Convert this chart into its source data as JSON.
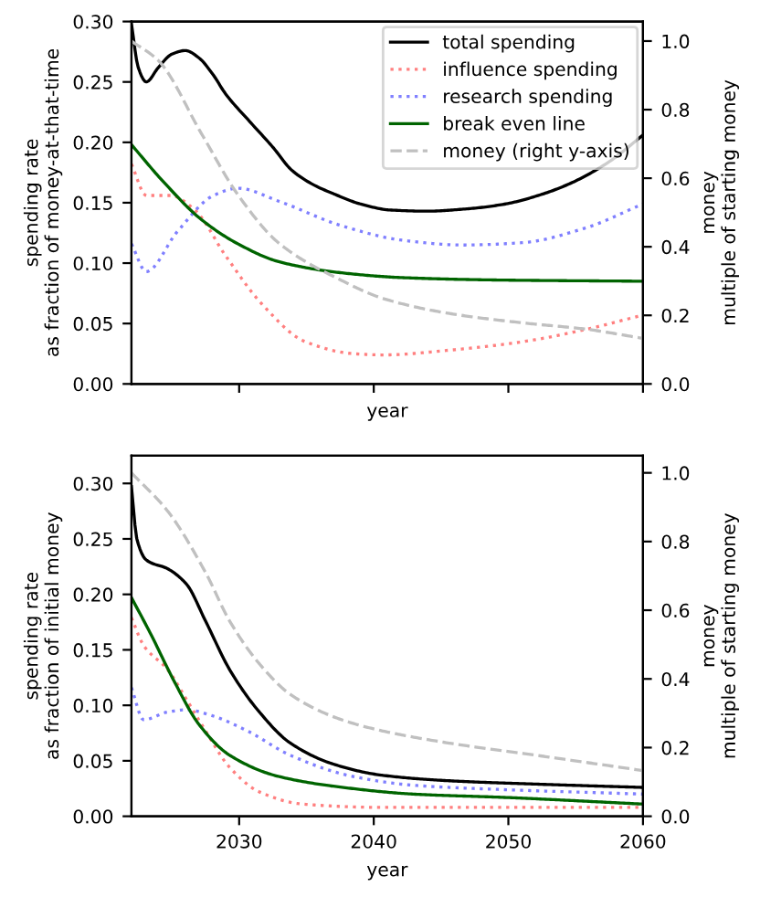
{
  "chart_data": [
    {
      "type": "line",
      "xlabel": "year",
      "ylabel": "spending rate\nas fraction of money-at-that-time",
      "y2label": "money\nmultiple of starting money",
      "xlim": [
        2022,
        2060
      ],
      "xticks": [
        {
          "value": 2030,
          "label": null
        },
        {
          "value": 2040,
          "label": null
        },
        {
          "value": 2050,
          "label": null
        },
        {
          "value": 2060,
          "label": null
        }
      ],
      "ylim": [
        0,
        0.3
      ],
      "yticks": [
        {
          "value": 0,
          "label": "0.00"
        },
        {
          "value": 0.05,
          "label": "0.05"
        },
        {
          "value": 0.1,
          "label": "0.10"
        },
        {
          "value": 0.15,
          "label": "0.15"
        },
        {
          "value": 0.2,
          "label": "0.20"
        },
        {
          "value": 0.25,
          "label": "0.25"
        },
        {
          "value": 0.3,
          "label": "0.30"
        }
      ],
      "y2lim": [
        0,
        1.057
      ],
      "y2ticks": [
        {
          "value": 0,
          "label": "0.0"
        },
        {
          "value": 0.2,
          "label": "0.2"
        },
        {
          "value": 0.4,
          "label": "0.4"
        },
        {
          "value": 0.6,
          "label": "0.6"
        },
        {
          "value": 0.8,
          "label": "0.8"
        },
        {
          "value": 1,
          "label": "1.0"
        }
      ],
      "tick_labels": "y",
      "legend": "top right",
      "grid": false,
      "marker": "none",
      "series": [
        {
          "name": "total spending",
          "color": "#000000",
          "line_style": "solid",
          "x": [
            2022,
            2022.5,
            2023.1,
            2024,
            2025,
            2026,
            2027,
            2028,
            2029,
            2030.8,
            2032.5,
            2033.9,
            2035.5,
            2037.1,
            2039,
            2041.2,
            2043.9,
            2047,
            2049.8,
            2052.5,
            2054.8,
            2057.5,
            2060
          ],
          "values": [
            0.298,
            0.262,
            0.25,
            0.262,
            0.273,
            0.276,
            0.27,
            0.257,
            0.24,
            0.217,
            0.196,
            0.177,
            0.165,
            0.157,
            0.149,
            0.144,
            0.143,
            0.145,
            0.149,
            0.157,
            0.167,
            0.184,
            0.206
          ]
        },
        {
          "name": "influence spending",
          "color": "#ff8080",
          "line_style": "dotted",
          "x": [
            2022,
            2023.1,
            2024.9,
            2026.7,
            2029,
            2031.7,
            2034.9,
            2038.5,
            2040.7,
            2045.7,
            2051.1,
            2055.7,
            2060
          ],
          "values": [
            0.182,
            0.156,
            0.156,
            0.144,
            0.106,
            0.066,
            0.035,
            0.025,
            0.024,
            0.028,
            0.035,
            0.045,
            0.057
          ]
        },
        {
          "name": "research spending",
          "color": "#8080ff",
          "line_style": "dotted",
          "x": [
            2022,
            2023.1,
            2025.4,
            2028.1,
            2029.9,
            2033,
            2037.6,
            2042.1,
            2046.6,
            2051.1,
            2055.7,
            2060
          ],
          "values": [
            0.116,
            0.093,
            0.126,
            0.156,
            0.162,
            0.151,
            0.131,
            0.119,
            0.115,
            0.117,
            0.129,
            0.149
          ]
        },
        {
          "name": "break even line",
          "color": "#006400",
          "line_style": "solid",
          "x": [
            2022,
            2024.4,
            2027.2,
            2029.9,
            2033,
            2037.6,
            2042.1,
            2049.3,
            2060
          ],
          "values": [
            0.198,
            0.167,
            0.136,
            0.116,
            0.101,
            0.092,
            0.088,
            0.086,
            0.085
          ]
        },
        {
          "name": "money (right y-axis)",
          "color": "#c0c0c0",
          "line_style": "dashed",
          "axis": "y2",
          "x": [
            2022,
            2024,
            2027.2,
            2029.9,
            2033,
            2037.6,
            2040.7,
            2045.7,
            2051.1,
            2055.7,
            2060
          ],
          "values": [
            1.0,
            0.943,
            0.73,
            0.552,
            0.409,
            0.302,
            0.249,
            0.205,
            0.178,
            0.16,
            0.133
          ]
        }
      ]
    },
    {
      "type": "line",
      "xlabel": "year",
      "ylabel": "spending rate\nas fraction of initial money",
      "y2label": "money\nmultiple of starting money",
      "xlim": [
        2022,
        2060
      ],
      "xticks": [
        2030,
        2040,
        2050,
        2060
      ],
      "ylim": [
        0,
        0.325
      ],
      "yticks": [
        {
          "value": 0,
          "label": "0.00"
        },
        {
          "value": 0.05,
          "label": "0.05"
        },
        {
          "value": 0.1,
          "label": "0.10"
        },
        {
          "value": 0.15,
          "label": "0.15"
        },
        {
          "value": 0.2,
          "label": "0.20"
        },
        {
          "value": 0.25,
          "label": "0.25"
        },
        {
          "value": 0.3,
          "label": "0.30"
        }
      ],
      "y2lim": [
        0,
        1.05
      ],
      "y2ticks": [
        {
          "value": 0,
          "label": "0.0"
        },
        {
          "value": 0.2,
          "label": "0.2"
        },
        {
          "value": 0.4,
          "label": "0.4"
        },
        {
          "value": 0.6,
          "label": "0.6"
        },
        {
          "value": 0.8,
          "label": "0.8"
        },
        {
          "value": 1,
          "label": "1.0"
        }
      ],
      "legend": false,
      "grid": false,
      "marker": "none",
      "series": [
        {
          "color": "#000000",
          "line_style": "solid",
          "x": [
            2022,
            2022.4,
            2023.1,
            2024.7,
            2026.1,
            2027.5,
            2029.3,
            2031.5,
            2033.8,
            2037,
            2040.6,
            2045.6,
            2052,
            2060
          ],
          "values": [
            0.297,
            0.25,
            0.231,
            0.223,
            0.209,
            0.176,
            0.132,
            0.094,
            0.066,
            0.047,
            0.037,
            0.032,
            0.029,
            0.026
          ]
        },
        {
          "color": "#ff8080",
          "line_style": "dotted",
          "x": [
            2022,
            2022.9,
            2024.7,
            2026.1,
            2027.5,
            2029.3,
            2031.5,
            2034.7,
            2040.6,
            2060
          ],
          "values": [
            0.179,
            0.154,
            0.132,
            0.105,
            0.077,
            0.044,
            0.022,
            0.011,
            0.008,
            0.008
          ]
        },
        {
          "color": "#8080ff",
          "line_style": "dotted",
          "x": [
            2022,
            2022.9,
            2024.7,
            2026.1,
            2027.9,
            2030.6,
            2033.8,
            2038.4,
            2042.9,
            2049.7,
            2060
          ],
          "values": [
            0.116,
            0.087,
            0.094,
            0.096,
            0.091,
            0.077,
            0.055,
            0.036,
            0.028,
            0.024,
            0.02
          ]
        },
        {
          "color": "#006400",
          "line_style": "solid",
          "x": [
            2022,
            2023.4,
            2025.2,
            2027,
            2029.3,
            2032.9,
            2038.4,
            2042.9,
            2049.7,
            2060
          ],
          "values": [
            0.197,
            0.165,
            0.121,
            0.083,
            0.055,
            0.036,
            0.025,
            0.02,
            0.017,
            0.011
          ]
        },
        {
          "color": "#c0c0c0",
          "line_style": "dashed",
          "axis": "y2",
          "x": [
            2022,
            2024.7,
            2027.5,
            2029.3,
            2031.5,
            2033.8,
            2037.4,
            2040.6,
            2045.6,
            2052,
            2060
          ],
          "values": [
            1.0,
            0.888,
            0.71,
            0.568,
            0.444,
            0.355,
            0.284,
            0.249,
            0.213,
            0.178,
            0.133
          ]
        }
      ]
    }
  ]
}
